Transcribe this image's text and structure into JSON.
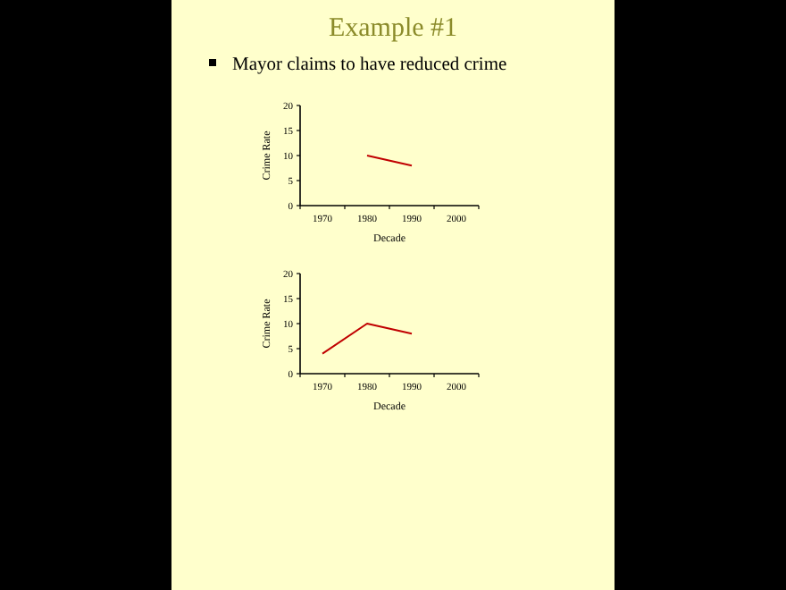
{
  "chart_data": [
    {
      "type": "line",
      "title": "Example #1",
      "subtitle": "Mayor claims to have reduced crime",
      "xlabel": "Decade",
      "ylabel": "Crime Rate",
      "categories": [
        "1970",
        "1980",
        "1990",
        "2000"
      ],
      "series": [
        {
          "color": "#c00000",
          "values": [
            null,
            10,
            8,
            null
          ]
        }
      ],
      "ylim": [
        0,
        20
      ],
      "yticks": [
        0,
        5,
        10,
        15,
        20
      ],
      "grid": false,
      "marker": "none",
      "line_style": "solid"
    },
    {
      "type": "line",
      "xlabel": "Decade",
      "ylabel": "Crime Rate",
      "categories": [
        "1970",
        "1980",
        "1990",
        "2000"
      ],
      "series": [
        {
          "color": "#c00000",
          "values": [
            4,
            10,
            8,
            null
          ]
        }
      ],
      "ylim": [
        0,
        20
      ],
      "yticks": [
        0,
        5,
        10,
        15,
        20
      ],
      "grid": false,
      "marker": "none",
      "line_style": "solid"
    }
  ]
}
